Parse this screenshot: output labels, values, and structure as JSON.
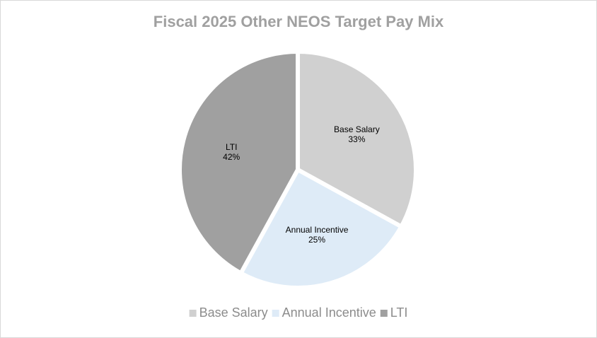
{
  "chart_data": {
    "type": "pie",
    "title": "Fiscal 2025 Other NEOS Target Pay Mix",
    "categories": [
      "Base Salary",
      "Annual Incentive",
      "LTI"
    ],
    "values": [
      33,
      25,
      42
    ],
    "value_labels": [
      "33%",
      "25%",
      "42%"
    ],
    "colors": [
      "#d0d0d0",
      "#deebf7",
      "#a0a0a0"
    ],
    "legend": "bottom"
  }
}
